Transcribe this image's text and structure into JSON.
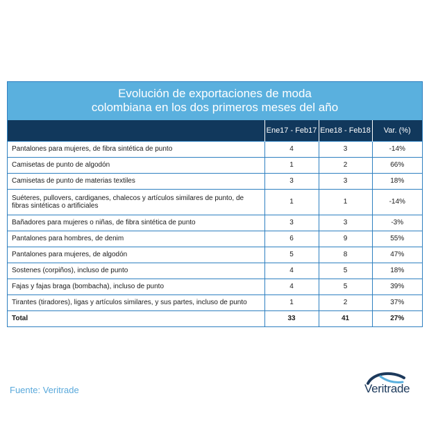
{
  "chart_data": {
    "type": "table",
    "title_lines": [
      "Evolución de exportaciones de moda",
      "colombiana en los dos primeros meses del año"
    ],
    "columns": [
      "",
      "Ene17 - Feb17",
      "Ene18 - Feb18",
      "Var. (%)"
    ],
    "rows": [
      {
        "label": "Pantalones para mujeres, de fibra sintética de punto",
        "v2017": "4",
        "v2018": "3",
        "var": "-14%"
      },
      {
        "label": "Camisetas de punto de algodón",
        "v2017": "1",
        "v2018": "2",
        "var": "66%"
      },
      {
        "label": "Camisetas de punto de materias textiles",
        "v2017": "3",
        "v2018": "3",
        "var": "18%"
      },
      {
        "label": "Suéteres, pullovers, cardiganes, chalecos y artículos similares de punto, de fibras sintéticas o artificiales",
        "v2017": "1",
        "v2018": "1",
        "var": "-14%"
      },
      {
        "label": "Bañadores para mujeres o niñas, de fibra sintética de punto",
        "v2017": "3",
        "v2018": "3",
        "var": "-3%"
      },
      {
        "label": "Pantalones para hombres, de denim",
        "v2017": "6",
        "v2018": "9",
        "var": "55%"
      },
      {
        "label": "Pantalones para mujeres, de algodón",
        "v2017": "5",
        "v2018": "8",
        "var": "47%"
      },
      {
        "label": "Sostenes (corpiños), incluso de punto",
        "v2017": "4",
        "v2018": "5",
        "var": "18%"
      },
      {
        "label": "Fajas y fajas braga (bombacha), incluso de punto",
        "v2017": "4",
        "v2018": "5",
        "var": "39%"
      },
      {
        "label": "Tirantes (tiradores), ligas y artículos similares, y sus partes, incluso de punto",
        "v2017": "1",
        "v2018": "2",
        "var": "37%"
      }
    ],
    "total": {
      "label": "Total",
      "v2017": "33",
      "v2018": "41",
      "var": "27%"
    }
  },
  "footer": {
    "source": "Fuente: Veritrade",
    "logo_text": "Veritrade",
    "logo_icon": "globe-swoosh-icon"
  },
  "colors": {
    "title_band": "#5ab0de",
    "header_band": "#11385c",
    "border": "#2d7fc0",
    "source_text": "#5aa9db",
    "logo": "#1d3a5c"
  }
}
